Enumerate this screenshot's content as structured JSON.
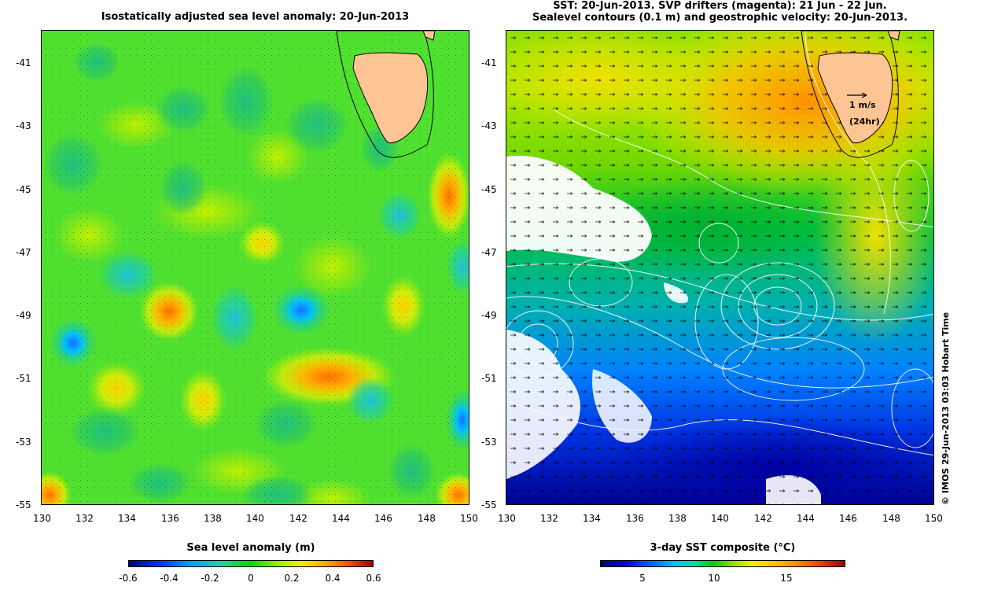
{
  "left_panel": {
    "title": "Isostatically adjusted sea level anomaly: 20-Jun-2013",
    "y_ticks": [
      "-41",
      "-43",
      "-45",
      "-47",
      "-49",
      "-51",
      "-53",
      "-55"
    ],
    "x_ticks": [
      "130",
      "132",
      "134",
      "136",
      "138",
      "140",
      "142",
      "144",
      "146",
      "148",
      "150"
    ],
    "colorbar": {
      "label": "Sea level anomaly (m)",
      "ticks": [
        "-0.6",
        "-0.4",
        "-0.2",
        "0",
        "0.2",
        "0.4",
        "0.6"
      ],
      "range": [
        -0.6,
        0.6
      ]
    }
  },
  "right_panel": {
    "title_line1": "SST: 20-Jun-2013. SVP drifters (magenta): 21 Jun - 22 Jun.",
    "title_line2": "Sealevel contours (0.1 m) and geostrophic velocity: 20-Jun-2013.",
    "y_ticks": [
      "-41",
      "-43",
      "-45",
      "-47",
      "-49",
      "-51",
      "-53",
      "-55"
    ],
    "x_ticks": [
      "130",
      "132",
      "134",
      "136",
      "138",
      "140",
      "142",
      "144",
      "146",
      "148",
      "150"
    ],
    "scale_arrow_label": "1 m/s",
    "scale_arrow_sublabel": "(24hr)",
    "colorbar": {
      "label": "3-day SST composite (°C)",
      "ticks": [
        "5",
        "10",
        "15"
      ],
      "range": [
        2,
        19
      ]
    }
  },
  "stamp": "© IMOS 29-Jun-2013 03:03 Hobart Time",
  "colors": {
    "land": "#fdc494",
    "coastline": "#000000",
    "cloud": "#ffffff",
    "sla_colormap": [
      "#00007f",
      "#0040ff",
      "#00c0ff",
      "#20e080",
      "#00e000",
      "#80f000",
      "#f0f000",
      "#ffb000",
      "#ff6000",
      "#e02000",
      "#800000"
    ],
    "sst_colormap": [
      "#00007f",
      "#0000e0",
      "#0060ff",
      "#00c0ff",
      "#00e0a0",
      "#00d000",
      "#a0e000",
      "#f0f000",
      "#ffc000",
      "#ff8000",
      "#e03000",
      "#a00000"
    ]
  }
}
